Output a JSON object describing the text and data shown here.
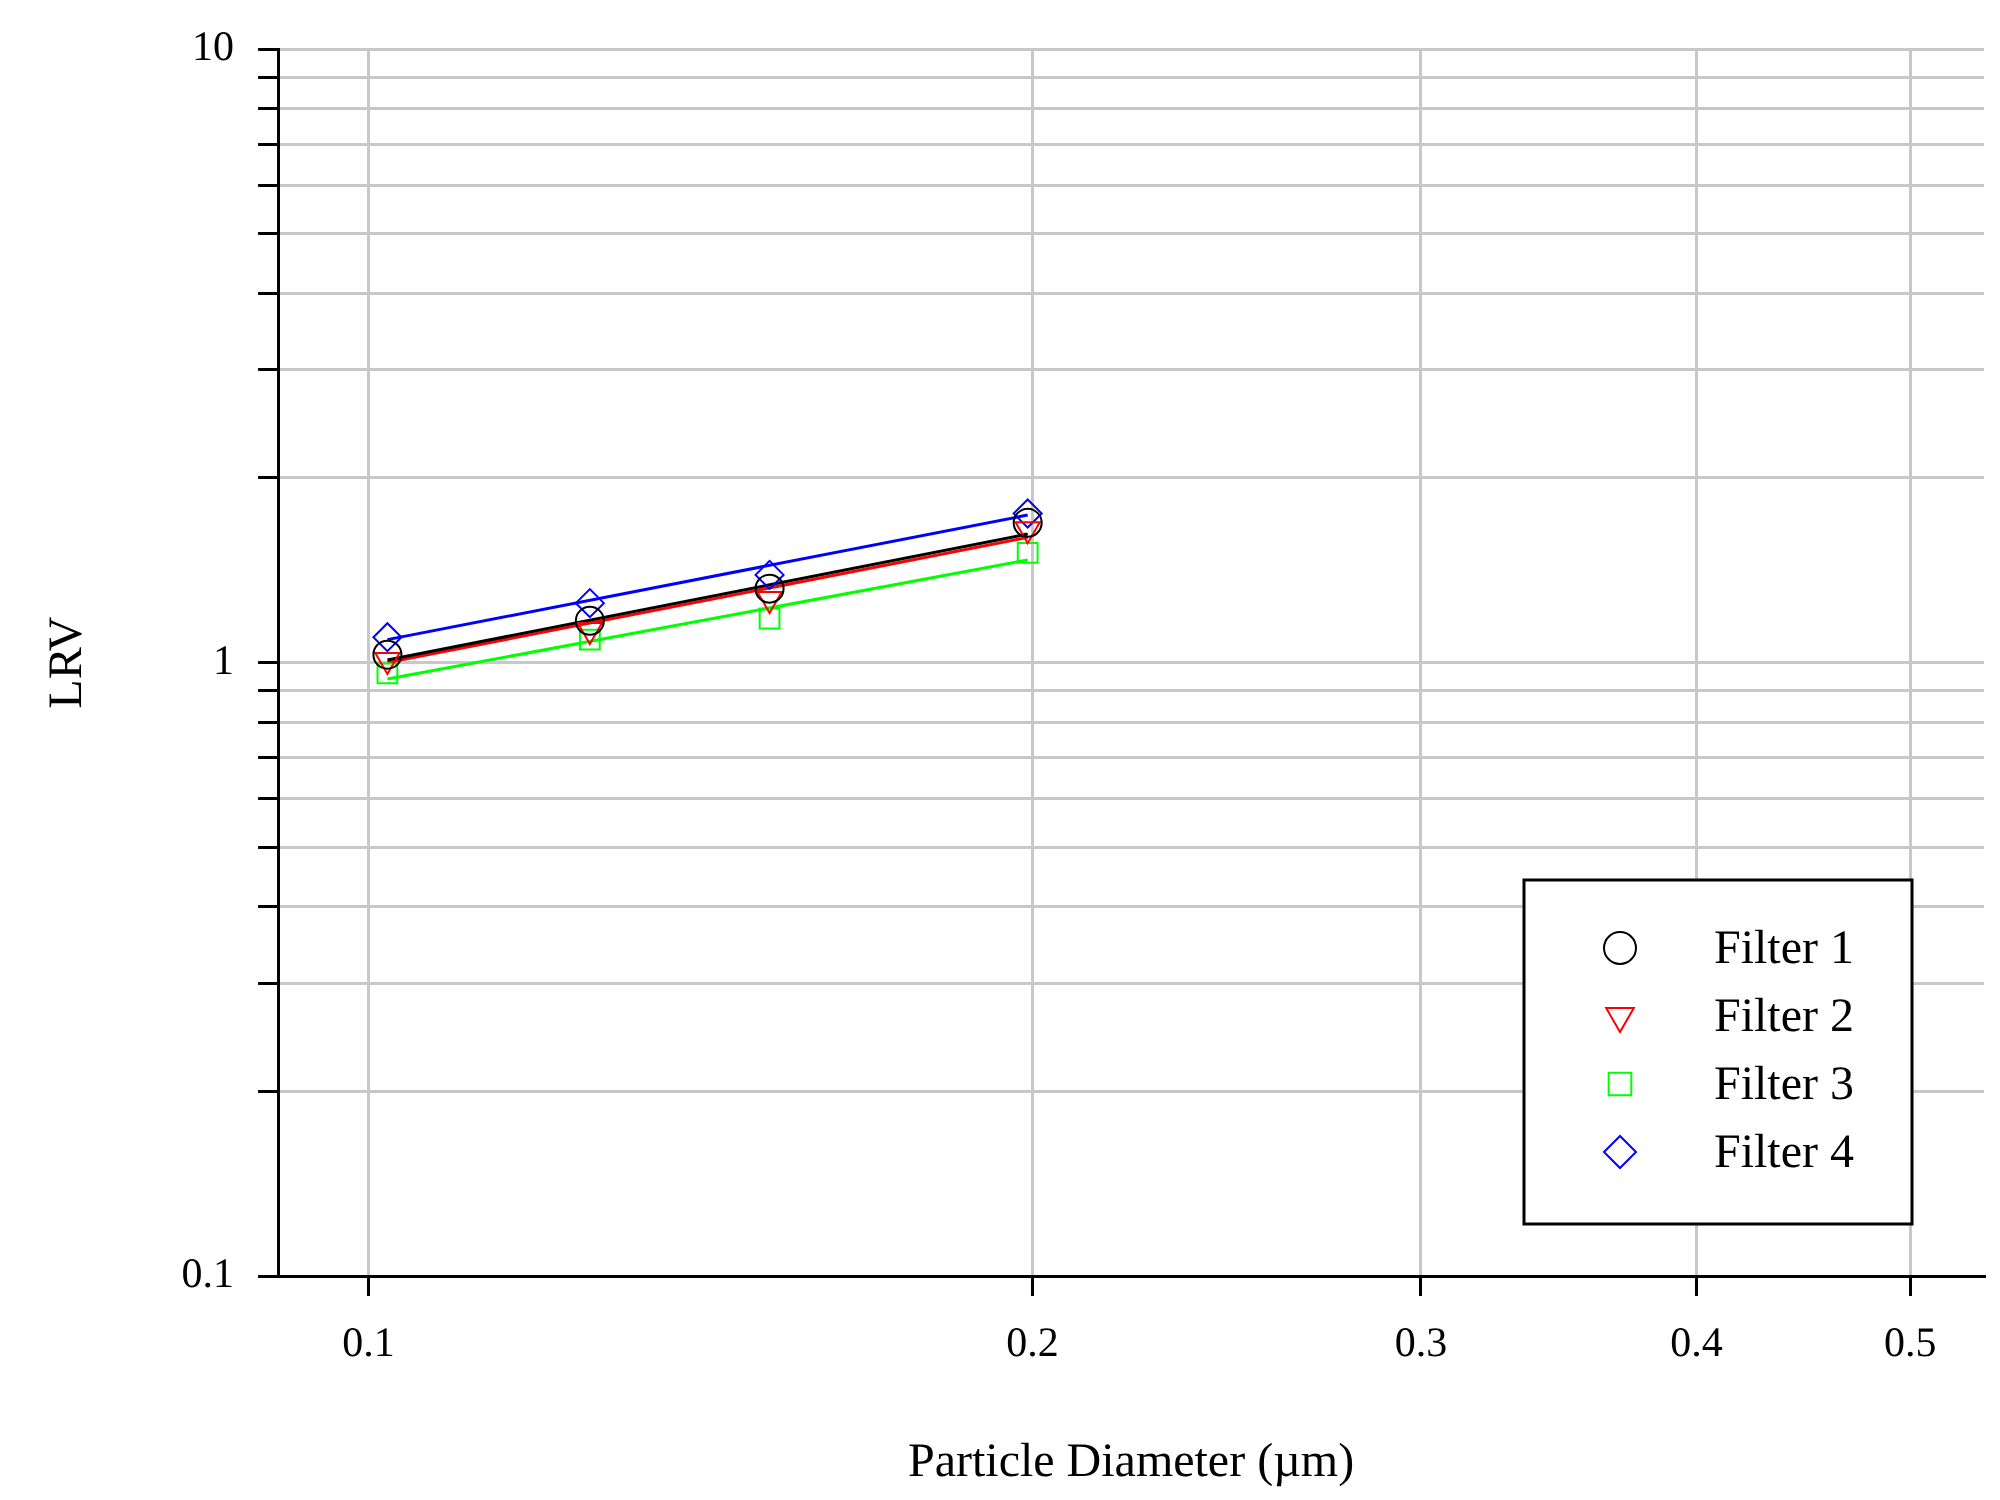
{
  "chart_data": {
    "type": "scatter",
    "xlabel": "Particle Diameter (µm)",
    "ylabel": "LRV",
    "log": "xy",
    "grid": true,
    "legend": "bottom right",
    "xlim": [
      0.091,
      0.54
    ],
    "xticks": [
      0.1,
      0.2,
      0.3,
      0.4,
      0.5
    ],
    "ylim": [
      0.1,
      10
    ],
    "yticks": [
      0.1,
      {
        "value": 0.2,
        "label": null
      },
      {
        "value": 0.3,
        "label": null
      },
      {
        "value": 0.4,
        "label": null
      },
      {
        "value": 0.5,
        "label": null
      },
      {
        "value": 0.6,
        "label": null
      },
      {
        "value": 0.7,
        "label": null
      },
      {
        "value": 0.8,
        "label": null
      },
      {
        "value": 0.9,
        "label": null
      },
      1,
      {
        "value": 2,
        "label": null
      },
      {
        "value": 3,
        "label": null
      },
      {
        "value": 4,
        "label": null
      },
      {
        "value": 5,
        "label": null
      },
      {
        "value": 6,
        "label": null
      },
      {
        "value": 7,
        "label": null
      },
      {
        "value": 8,
        "label": null
      },
      {
        "value": 9,
        "label": null
      },
      10
    ],
    "x": [
      0.102,
      0.126,
      0.152,
      0.199
    ],
    "series": [
      {
        "name": "Filter 1",
        "color": "#000000",
        "marker": "circle",
        "values": [
          1.03,
          1.17,
          1.32,
          1.69
        ]
      },
      {
        "name": "Filter 2",
        "color": "#ff0000",
        "marker": "triangle",
        "values": [
          1.01,
          1.13,
          1.27,
          1.65
        ]
      },
      {
        "name": "Filter 3",
        "color": "#00ff00",
        "marker": "square",
        "values": [
          0.96,
          1.09,
          1.18,
          1.51
        ]
      },
      {
        "name": "Filter 4",
        "color": "#0000ff",
        "marker": "diamond",
        "values": [
          1.1,
          1.25,
          1.39,
          1.75
        ]
      },
      {
        "type": "line",
        "color": "#000000",
        "marker": "none",
        "values": [
          1.01,
          null,
          null,
          1.62
        ]
      },
      {
        "type": "line",
        "color": "#ff0000",
        "marker": "none",
        "values": [
          1.0,
          null,
          null,
          1.6
        ]
      },
      {
        "type": "line",
        "color": "#00ff00",
        "marker": "none",
        "values": [
          0.94,
          null,
          null,
          1.47
        ]
      },
      {
        "type": "line",
        "color": "#0000ff",
        "marker": "none",
        "values": [
          1.09,
          null,
          null,
          1.74
        ]
      }
    ]
  }
}
